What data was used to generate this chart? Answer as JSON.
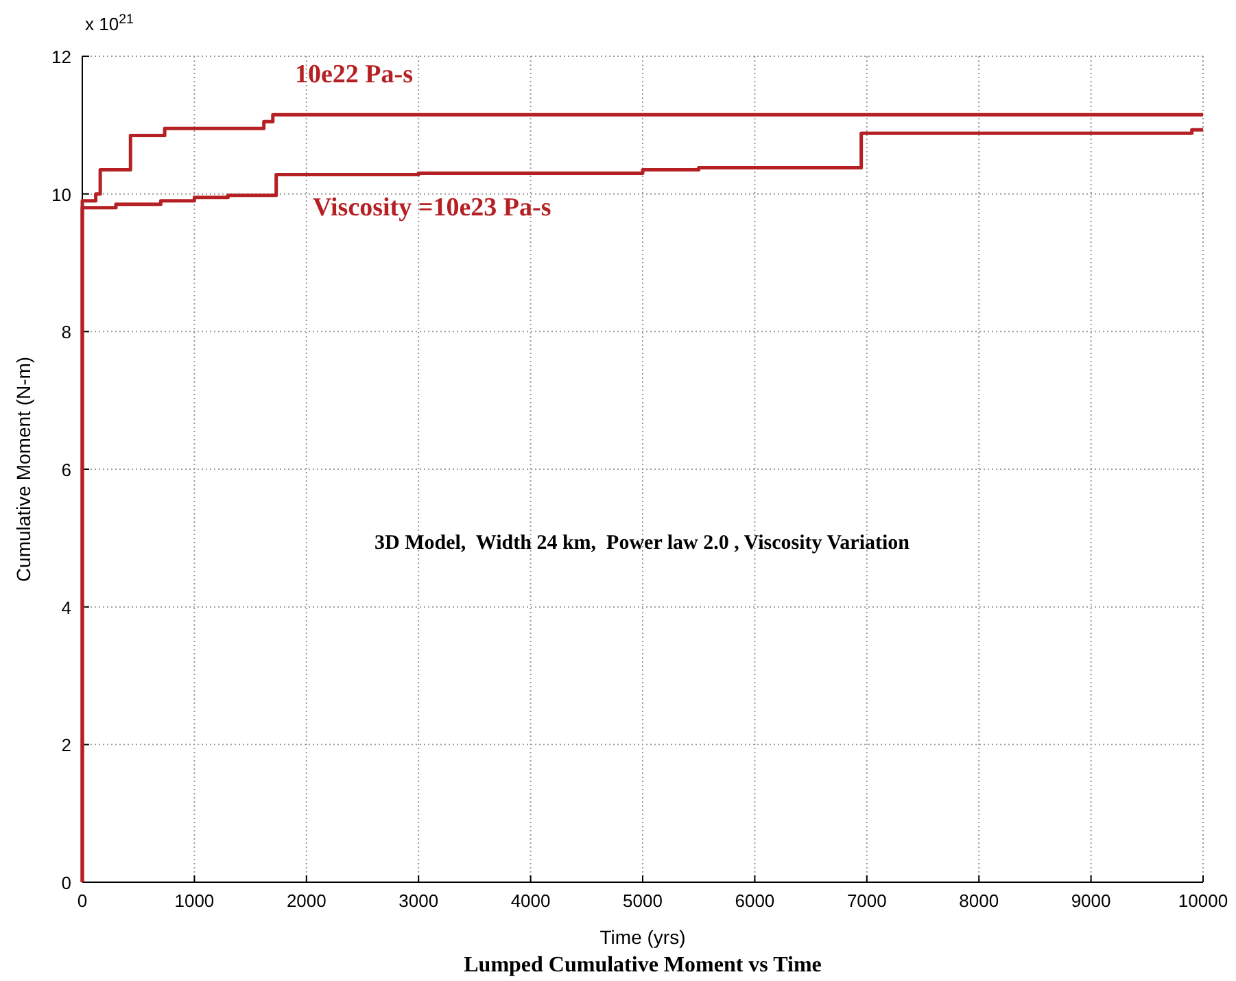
{
  "chart_data": {
    "type": "step",
    "title": "Lumped Cumulative Moment vs Time",
    "xlabel": "Time (yrs)",
    "ylabel": "Cumulative Moment (N-m)",
    "annotations": [
      "x 10$^{21}$",
      "3D Model,  Width 24 km,  Power law 2.0 , Viscosity Variation"
    ],
    "xlim": [
      0,
      10000
    ],
    "xticks": [
      0,
      1000,
      2000,
      3000,
      4000,
      5000,
      6000,
      7000,
      8000,
      9000,
      10000
    ],
    "ylim": [
      0,
      12
    ],
    "yticks": [
      0,
      2,
      4,
      6,
      8,
      10,
      12
    ],
    "grid": true,
    "legend": false,
    "marker": "none",
    "line_style": "solid",
    "series": [
      {
        "name": "10e22 Pa-s",
        "color": "#b52024",
        "x": [
          0,
          0,
          120,
          160,
          430,
          735,
          1620,
          1700,
          10000
        ],
        "values": [
          0,
          9.9,
          10.0,
          10.35,
          10.85,
          10.95,
          11.05,
          11.15,
          11.15
        ]
      },
      {
        "name": "Viscosity =10e23 Pa-s",
        "color": "#b52024",
        "x": [
          0,
          0,
          300,
          700,
          1000,
          1300,
          1730,
          3000,
          5000,
          5500,
          6950,
          9900,
          10000
        ],
        "values": [
          0,
          9.8,
          9.85,
          9.9,
          9.95,
          9.98,
          10.28,
          10.3,
          10.35,
          10.38,
          10.88,
          10.93,
          10.93
        ]
      }
    ]
  }
}
